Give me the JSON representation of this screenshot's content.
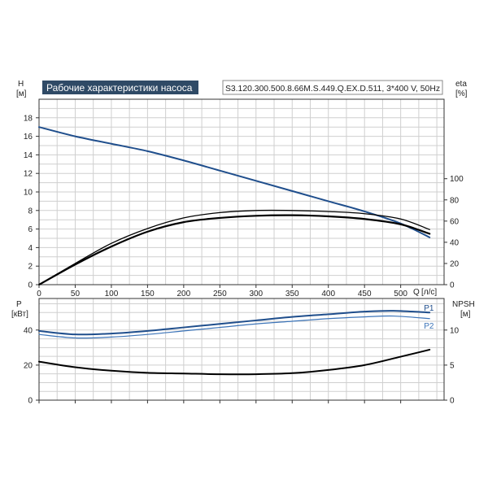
{
  "header": {
    "title": "Рабочие характеристики насоса",
    "model": "S3.120.300.500.8.66M.S.449.Q.EX.D.511, 3*400 V, 50Hz"
  },
  "colors": {
    "blue": "#1f4e8c",
    "blue_light": "#3c74b8",
    "black": "#000000",
    "banner": "#2f4a66"
  },
  "chart_data": [
    {
      "type": "line",
      "id": "top",
      "y_label": "H",
      "y_unit": "[м]",
      "y2_label": "eta",
      "y2_unit": "[%]",
      "x_label": "Q",
      "x_unit": "[л/с]",
      "x_ticks": [
        0,
        50,
        100,
        150,
        200,
        250,
        300,
        350,
        400,
        450,
        500
      ],
      "y_ticks": [
        0,
        2,
        4,
        6,
        8,
        10,
        12,
        14,
        16,
        18
      ],
      "y2_ticks": [
        0,
        20,
        40,
        60,
        80,
        100
      ],
      "xlim": [
        0,
        560
      ],
      "ylim": [
        0,
        20
      ],
      "y2lim": [
        0,
        175
      ],
      "grid": true,
      "series": [
        {
          "axis": "y",
          "color": "blue",
          "width": 2,
          "x": [
            0,
            50,
            100,
            150,
            200,
            250,
            300,
            350,
            400,
            450,
            500,
            540
          ],
          "y": [
            17.0,
            16.0,
            15.2,
            14.4,
            13.4,
            12.3,
            11.2,
            10.1,
            9.0,
            7.9,
            6.6,
            5.1
          ]
        },
        {
          "axis": "y2",
          "color": "black",
          "width": 1.3,
          "x": [
            0,
            50,
            100,
            150,
            200,
            250,
            300,
            350,
            400,
            450,
            500,
            540
          ],
          "y": [
            0,
            20,
            39,
            53,
            63,
            68,
            70,
            70,
            69,
            67,
            62,
            52
          ]
        },
        {
          "axis": "y2",
          "color": "black",
          "width": 2.2,
          "x": [
            0,
            50,
            100,
            150,
            200,
            250,
            300,
            350,
            400,
            450,
            500,
            540
          ],
          "y": [
            0,
            19,
            36,
            50,
            59,
            63,
            65,
            65.5,
            64.5,
            62,
            57,
            48
          ]
        }
      ]
    },
    {
      "type": "line",
      "id": "bottom",
      "y_label": "P",
      "y_unit": "[кВт]",
      "y2_label": "NPSH",
      "y2_unit": "[м]",
      "y_ticks": [
        0,
        20,
        40
      ],
      "y2_ticks": [
        0,
        5,
        10
      ],
      "xlim": [
        0,
        560
      ],
      "ylim": [
        0,
        58
      ],
      "y2lim": [
        0,
        14.5
      ],
      "grid": true,
      "series": [
        {
          "name": "P1",
          "axis": "y",
          "color": "blue",
          "width": 2,
          "label": true,
          "x": [
            0,
            50,
            100,
            150,
            200,
            250,
            300,
            350,
            400,
            450,
            490,
            540
          ],
          "y": [
            39.5,
            37.5,
            38.0,
            39.5,
            41.5,
            43.5,
            45.5,
            47.5,
            49.0,
            50.5,
            51.0,
            50.0
          ]
        },
        {
          "name": "P2",
          "axis": "y",
          "color": "blue_light",
          "width": 1.2,
          "label": true,
          "x": [
            0,
            50,
            100,
            150,
            200,
            250,
            300,
            350,
            400,
            450,
            490,
            540
          ],
          "y": [
            37.5,
            35.5,
            36.0,
            37.5,
            39.5,
            41.5,
            43.5,
            45.0,
            46.5,
            47.5,
            48.0,
            46.5
          ]
        },
        {
          "axis": "y2",
          "color": "black",
          "width": 2,
          "x": [
            0,
            50,
            100,
            150,
            200,
            250,
            300,
            350,
            400,
            450,
            500,
            540
          ],
          "y": [
            5.5,
            4.7,
            4.2,
            3.9,
            3.8,
            3.7,
            3.7,
            3.85,
            4.3,
            5.0,
            6.2,
            7.2
          ]
        }
      ]
    }
  ]
}
